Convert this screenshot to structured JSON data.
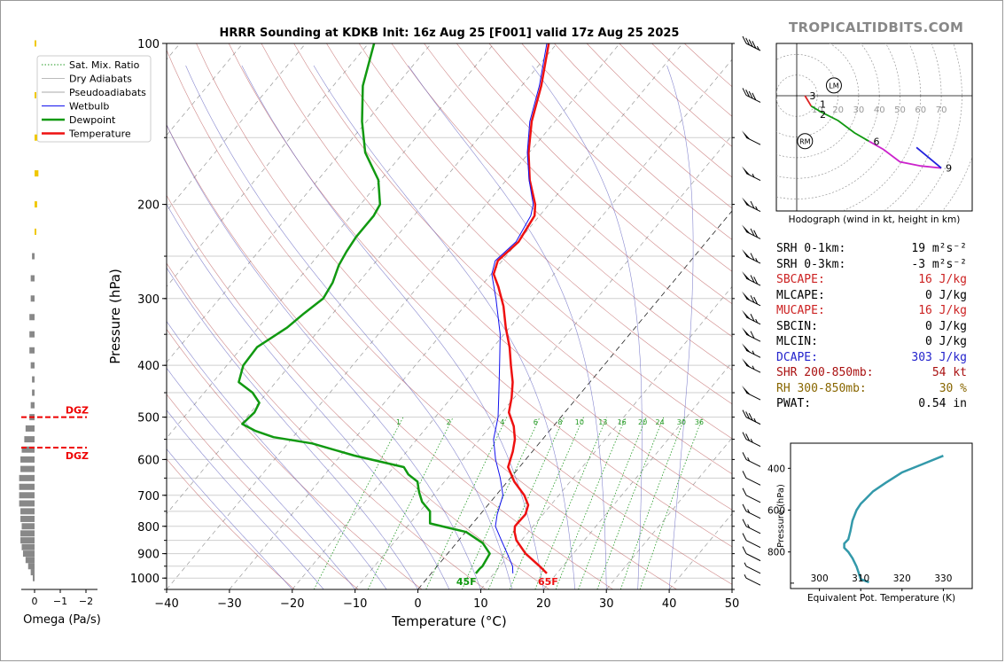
{
  "brand": "TROPICALTIDBITS.COM",
  "chart_data": [
    {
      "type": "line",
      "name": "skewt",
      "title": "HRRR Sounding at KDKB Init: 16z Aug 25 [F001] valid 17z Aug 25 2025",
      "xlabel": "Temperature (°C)",
      "ylabel": "Pressure (hPa)",
      "xlim": [
        -40,
        50
      ],
      "ylim": [
        1050,
        100
      ],
      "y_scale": "log",
      "x_ticks": [
        -40,
        -30,
        -20,
        -10,
        0,
        10,
        20,
        30,
        40,
        50
      ],
      "x_tick_labels": [
        "−40",
        "−30",
        "−20",
        "−10",
        "0",
        "10",
        "20",
        "30",
        "40",
        "50"
      ],
      "y_ticks": [
        100,
        200,
        300,
        400,
        500,
        600,
        700,
        800,
        900,
        1000
      ],
      "grid": true,
      "legend_position": "top-left",
      "legend": [
        "Sat. Mix. Ratio",
        "Dry Adiabats",
        "Pseudoadiabats",
        "Wetbulb",
        "Dewpoint",
        "Temperature"
      ],
      "mixing_ratio_labels": [
        "1",
        "2",
        "4",
        "6",
        "8",
        "10",
        "13",
        "16",
        "20",
        "24",
        "30",
        "36"
      ],
      "surface_labels": {
        "dewpoint": "45F",
        "temperature": "65F"
      },
      "colors": {
        "temperature": "#ee1111",
        "dewpoint": "#119911",
        "wetbulb": "#1111ee",
        "dry": "#bb5555",
        "moist": "#5555bb",
        "mixing": "#229922"
      },
      "series": [
        {
          "name": "Temperature",
          "color": "#ee1111",
          "p": [
            980,
            950,
            900,
            850,
            820,
            800,
            790,
            760,
            730,
            700,
            660,
            620,
            580,
            550,
            520,
            490,
            460,
            430,
            400,
            370,
            340,
            310,
            285,
            270,
            255,
            235,
            210,
            200,
            180,
            160,
            140,
            120,
            100
          ],
          "t": [
            18.4,
            16.3,
            12.4,
            9.2,
            7.8,
            7.1,
            7.1,
            7.2,
            6.4,
            4.5,
            1.1,
            -1.8,
            -3.1,
            -4.4,
            -6.3,
            -8.9,
            -10.4,
            -12.3,
            -14.8,
            -17.4,
            -20.6,
            -23.8,
            -27.2,
            -29.6,
            -30.7,
            -29.9,
            -30.8,
            -32.2,
            -36.3,
            -40.1,
            -43.7,
            -46.9,
            -51.3
          ]
        },
        {
          "name": "Dewpoint",
          "color": "#119911",
          "p": [
            980,
            960,
            950,
            900,
            860,
            820,
            790,
            750,
            720,
            690,
            660,
            640,
            620,
            590,
            560,
            545,
            530,
            515,
            490,
            470,
            450,
            430,
            400,
            370,
            340,
            320,
            300,
            280,
            260,
            245,
            230,
            210,
            200,
            180,
            160,
            140,
            120,
            100
          ],
          "t": [
            7.1,
            7.1,
            7.2,
            6.7,
            4.2,
            0.1,
            -6.8,
            -8.4,
            -10.9,
            -12.7,
            -14.3,
            -16.7,
            -18.4,
            -27.8,
            -36.1,
            -43.1,
            -46.9,
            -49.8,
            -49.4,
            -49.9,
            -52.3,
            -55.9,
            -57.4,
            -57.6,
            -55.4,
            -54.6,
            -53.5,
            -54.1,
            -55.4,
            -56.0,
            -56.4,
            -56.4,
            -56.9,
            -60.4,
            -66.1,
            -70.7,
            -75.3,
            -79.1
          ]
        },
        {
          "name": "Wetbulb",
          "color": "#1111ee",
          "p": [
            980,
            950,
            900,
            850,
            800,
            760,
            700,
            650,
            600,
            550,
            500,
            450,
            400,
            350,
            300,
            270,
            255,
            235,
            210,
            200,
            180,
            160,
            140,
            120,
            100
          ],
          "t": [
            13,
            12,
            9.5,
            6.8,
            4.0,
            2.7,
            1.1,
            -1.6,
            -4.8,
            -7.8,
            -10.0,
            -13.1,
            -16.6,
            -20.6,
            -26.0,
            -29.9,
            -31.1,
            -30.3,
            -31.4,
            -32.5,
            -36.4,
            -40.3,
            -44.0,
            -47.2,
            -51.6
          ]
        }
      ],
      "omega_axis": {
        "xlabel": "Omega (Pa/s)",
        "tick_labels": [
          "0",
          "−1",
          "−2"
        ],
        "dgz_label": "DGZ",
        "dgz_layers": [
          500,
          570
        ]
      },
      "omega_profile": {
        "p": [
          1000,
          975,
          950,
          925,
          900,
          875,
          850,
          825,
          800,
          775,
          750,
          725,
          700,
          675,
          650,
          625,
          600,
          575,
          550,
          525,
          500,
          475,
          450,
          425,
          400,
          375,
          350,
          325,
          300,
          275,
          250,
          225,
          200,
          175,
          150,
          125,
          100
        ],
        "value": [
          0.05,
          0.15,
          0.25,
          0.35,
          0.45,
          0.5,
          0.55,
          0.55,
          0.5,
          0.55,
          0.55,
          0.6,
          0.6,
          0.6,
          0.6,
          0.55,
          0.55,
          0.5,
          0.4,
          0.35,
          0.2,
          0.15,
          0.1,
          0.1,
          0.15,
          0.2,
          0.2,
          0.2,
          0.15,
          0.15,
          0.1,
          -0.05,
          -0.1,
          -0.15,
          -0.1,
          -0.05,
          -0.02
        ]
      },
      "wind_barbs": [
        {
          "p": 100,
          "spd": 45
        },
        {
          "p": 125,
          "spd": 40
        },
        {
          "p": 150,
          "spd": 50
        },
        {
          "p": 175,
          "spd": 55
        },
        {
          "p": 200,
          "spd": 65
        },
        {
          "p": 225,
          "spd": 70
        },
        {
          "p": 250,
          "spd": 65
        },
        {
          "p": 275,
          "spd": 70
        },
        {
          "p": 300,
          "spd": 70
        },
        {
          "p": 325,
          "spd": 65
        },
        {
          "p": 350,
          "spd": 60
        },
        {
          "p": 375,
          "spd": 55
        },
        {
          "p": 400,
          "spd": 55
        },
        {
          "p": 450,
          "spd": 50
        },
        {
          "p": 500,
          "spd": 35
        },
        {
          "p": 550,
          "spd": 25
        },
        {
          "p": 600,
          "spd": 15
        },
        {
          "p": 650,
          "spd": 10
        },
        {
          "p": 700,
          "spd": 10
        },
        {
          "p": 750,
          "spd": 15
        },
        {
          "p": 800,
          "spd": 15
        },
        {
          "p": 850,
          "spd": 10
        },
        {
          "p": 900,
          "spd": 10
        },
        {
          "p": 950,
          "spd": 5
        },
        {
          "p": 1000,
          "spd": 5
        }
      ]
    },
    {
      "type": "line",
      "name": "hodograph",
      "xlabel": "Hodograph (wind in kt, height in km)",
      "ring_labels": [
        "10",
        "20",
        "30",
        "40",
        "50",
        "60",
        "70"
      ],
      "segments": [
        {
          "color": "#dd2222",
          "u": [
            7,
            4
          ],
          "v": [
            -5,
            0
          ]
        },
        {
          "color": "#119911",
          "u": [
            7,
            12,
            20,
            28,
            35
          ],
          "v": [
            -5,
            -8,
            -12,
            -18,
            -22
          ]
        },
        {
          "color": "#cc22cc",
          "u": [
            35,
            42,
            50,
            60,
            70
          ],
          "v": [
            -22,
            -26,
            -32,
            -34,
            -35
          ]
        },
        {
          "color": "#2222dd",
          "u": [
            70,
            64,
            58
          ],
          "v": [
            -35,
            -30,
            -25
          ]
        }
      ],
      "height_labels": [
        {
          "text": "3",
          "u": 4,
          "v": 0
        },
        {
          "text": "1",
          "u": 9,
          "v": -4
        },
        {
          "text": "2",
          "u": 9,
          "v": -9
        },
        {
          "text": "6",
          "u": 35,
          "v": -22
        },
        {
          "text": "9",
          "u": 70,
          "v": -35
        }
      ],
      "markers": [
        {
          "text": "LM",
          "u": 18,
          "v": 5
        },
        {
          "text": "RM",
          "u": 4,
          "v": -22
        }
      ]
    },
    {
      "type": "line",
      "name": "theta_e",
      "xlabel": "Equivalent Pot. Temperature (K)",
      "ylabel": "Pressure (hPa)",
      "x_ticks": [
        300,
        310,
        320,
        330
      ],
      "y_ticks": [
        400,
        600,
        800
      ],
      "x": [
        312,
        310,
        309.5,
        309,
        308,
        307,
        306,
        306,
        307,
        307.5,
        308,
        309,
        310,
        311,
        313,
        316,
        320,
        325,
        330
      ],
      "y": [
        945,
        930,
        900,
        870,
        830,
        800,
        780,
        760,
        740,
        700,
        650,
        600,
        570,
        550,
        510,
        470,
        420,
        380,
        340
      ]
    }
  ],
  "stats": [
    {
      "label": "SRH 0-1km:",
      "value": "19",
      "unit": "m²s⁻²",
      "color": "#000000"
    },
    {
      "label": "SRH 0-3km:",
      "value": "-3",
      "unit": "m²s⁻²",
      "color": "#000000"
    },
    {
      "label": "SBCAPE:",
      "value": "16 J/kg",
      "unit": "",
      "color": "#cc2222"
    },
    {
      "label": "MLCAPE:",
      "value": "0 J/kg",
      "unit": "",
      "color": "#000000"
    },
    {
      "label": "MUCAPE:",
      "value": "16 J/kg",
      "unit": "",
      "color": "#cc2222"
    },
    {
      "label": "SBCIN:",
      "value": "0 J/kg",
      "unit": "",
      "color": "#000000"
    },
    {
      "label": "MLCIN:",
      "value": "0 J/kg",
      "unit": "",
      "color": "#000000"
    },
    {
      "label": "DCAPE:",
      "value": "303 J/kg",
      "unit": "",
      "color": "#2222cc"
    },
    {
      "label": "SHR 200-850mb:",
      "value": "54 kt",
      "unit": "",
      "color": "#aa1111"
    },
    {
      "label": "RH 300-850mb:",
      "value": "30 %",
      "unit": "",
      "color": "#886600"
    },
    {
      "label": "PWAT:",
      "value": "0.54 in",
      "unit": "",
      "color": "#000000"
    }
  ]
}
